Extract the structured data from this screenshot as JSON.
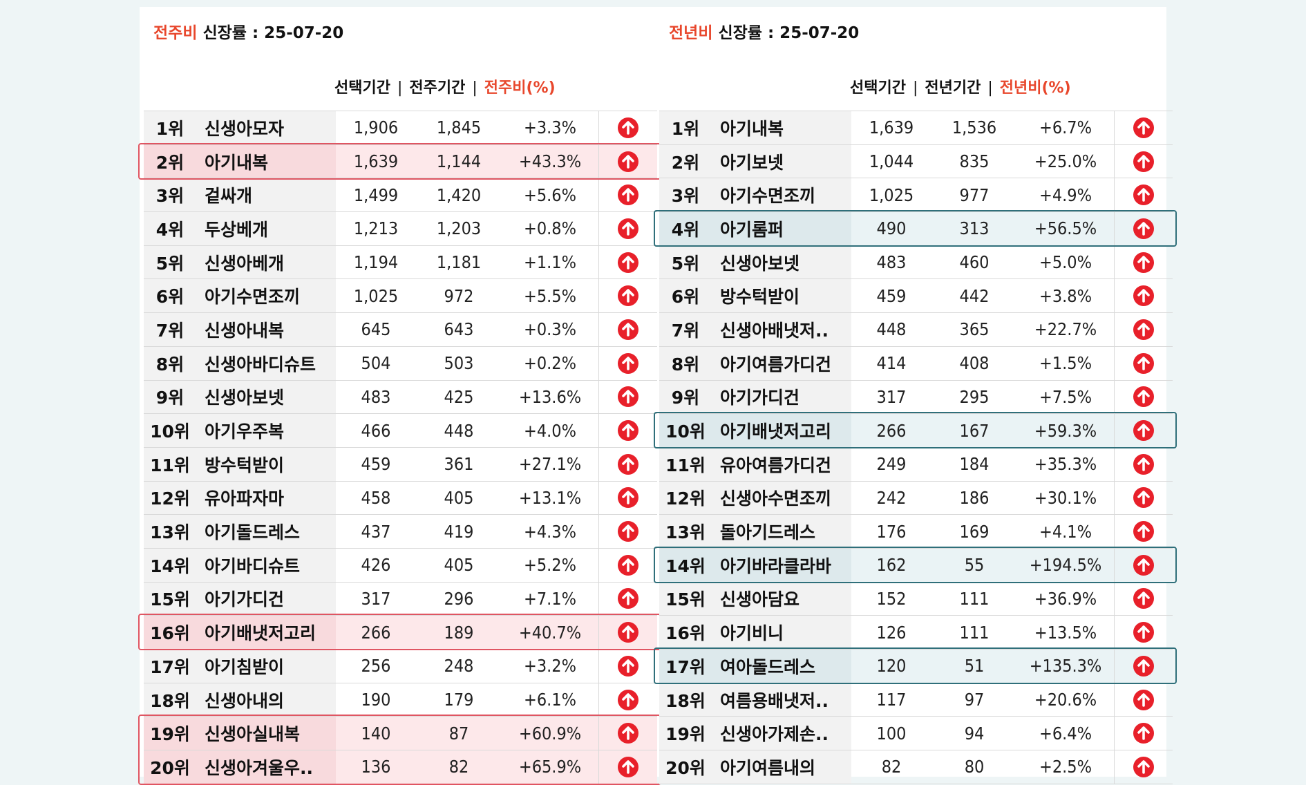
{
  "left": {
    "title_accent": "전주비",
    "title_rest": " 신장률  : 25-07-20",
    "col_headers": [
      "선택기간",
      "|",
      "전주기간",
      "|",
      "전주비(%)"
    ],
    "rows": [
      {
        "rank": "1위",
        "name": "신생아모자",
        "sel": "1,906",
        "prev": "1,845",
        "pct": "+3.3%",
        "hl": ""
      },
      {
        "rank": "2위",
        "name": "아기내복",
        "sel": "1,639",
        "prev": "1,144",
        "pct": "+43.3%",
        "hl": "red"
      },
      {
        "rank": "3위",
        "name": "겉싸개",
        "sel": "1,499",
        "prev": "1,420",
        "pct": "+5.6%",
        "hl": ""
      },
      {
        "rank": "4위",
        "name": "두상베개",
        "sel": "1,213",
        "prev": "1,203",
        "pct": "+0.8%",
        "hl": ""
      },
      {
        "rank": "5위",
        "name": "신생아베개",
        "sel": "1,194",
        "prev": "1,181",
        "pct": "+1.1%",
        "hl": ""
      },
      {
        "rank": "6위",
        "name": "아기수면조끼",
        "sel": "1,025",
        "prev": "972",
        "pct": "+5.5%",
        "hl": ""
      },
      {
        "rank": "7위",
        "name": "신생아내복",
        "sel": "645",
        "prev": "643",
        "pct": "+0.3%",
        "hl": ""
      },
      {
        "rank": "8위",
        "name": "신생아바디슈트",
        "sel": "504",
        "prev": "503",
        "pct": "+0.2%",
        "hl": ""
      },
      {
        "rank": "9위",
        "name": "신생아보넷",
        "sel": "483",
        "prev": "425",
        "pct": "+13.6%",
        "hl": ""
      },
      {
        "rank": "10위",
        "name": "아기우주복",
        "sel": "466",
        "prev": "448",
        "pct": "+4.0%",
        "hl": ""
      },
      {
        "rank": "11위",
        "name": "방수턱받이",
        "sel": "459",
        "prev": "361",
        "pct": "+27.1%",
        "hl": ""
      },
      {
        "rank": "12위",
        "name": "유아파자마",
        "sel": "458",
        "prev": "405",
        "pct": "+13.1%",
        "hl": ""
      },
      {
        "rank": "13위",
        "name": "아기돌드레스",
        "sel": "437",
        "prev": "419",
        "pct": "+4.3%",
        "hl": ""
      },
      {
        "rank": "14위",
        "name": "아기바디슈트",
        "sel": "426",
        "prev": "405",
        "pct": "+5.2%",
        "hl": ""
      },
      {
        "rank": "15위",
        "name": "아기가디건",
        "sel": "317",
        "prev": "296",
        "pct": "+7.1%",
        "hl": ""
      },
      {
        "rank": "16위",
        "name": "아기배냇저고리",
        "sel": "266",
        "prev": "189",
        "pct": "+40.7%",
        "hl": "red"
      },
      {
        "rank": "17위",
        "name": "아기침받이",
        "sel": "256",
        "prev": "248",
        "pct": "+3.2%",
        "hl": ""
      },
      {
        "rank": "18위",
        "name": "신생아내의",
        "sel": "190",
        "prev": "179",
        "pct": "+6.1%",
        "hl": ""
      },
      {
        "rank": "19위",
        "name": "신생아실내복",
        "sel": "140",
        "prev": "87",
        "pct": "+60.9%",
        "hl": "red"
      },
      {
        "rank": "20위",
        "name": "신생아겨울우..",
        "sel": "136",
        "prev": "82",
        "pct": "+65.9%",
        "hl": "red"
      }
    ]
  },
  "right": {
    "title_accent": "전년비",
    "title_rest": " 신장률 : 25-07-20",
    "col_headers": [
      "선택기간",
      "|",
      "전년기간",
      "|",
      "전년비(%)"
    ],
    "rows": [
      {
        "rank": "1위",
        "name": "아기내복",
        "sel": "1,639",
        "prev": "1,536",
        "pct": "+6.7%",
        "hl": ""
      },
      {
        "rank": "2위",
        "name": "아기보넷",
        "sel": "1,044",
        "prev": "835",
        "pct": "+25.0%",
        "hl": ""
      },
      {
        "rank": "3위",
        "name": "아기수면조끼",
        "sel": "1,025",
        "prev": "977",
        "pct": "+4.9%",
        "hl": ""
      },
      {
        "rank": "4위",
        "name": "아기롬퍼",
        "sel": "490",
        "prev": "313",
        "pct": "+56.5%",
        "hl": "teal"
      },
      {
        "rank": "5위",
        "name": "신생아보넷",
        "sel": "483",
        "prev": "460",
        "pct": "+5.0%",
        "hl": ""
      },
      {
        "rank": "6위",
        "name": "방수턱받이",
        "sel": "459",
        "prev": "442",
        "pct": "+3.8%",
        "hl": ""
      },
      {
        "rank": "7위",
        "name": "신생아배냇저..",
        "sel": "448",
        "prev": "365",
        "pct": "+22.7%",
        "hl": ""
      },
      {
        "rank": "8위",
        "name": "아기여름가디건",
        "sel": "414",
        "prev": "408",
        "pct": "+1.5%",
        "hl": ""
      },
      {
        "rank": "9위",
        "name": "아기가디건",
        "sel": "317",
        "prev": "295",
        "pct": "+7.5%",
        "hl": ""
      },
      {
        "rank": "10위",
        "name": "아기배냇저고리",
        "sel": "266",
        "prev": "167",
        "pct": "+59.3%",
        "hl": "teal"
      },
      {
        "rank": "11위",
        "name": "유아여름가디건",
        "sel": "249",
        "prev": "184",
        "pct": "+35.3%",
        "hl": ""
      },
      {
        "rank": "12위",
        "name": "신생아수면조끼",
        "sel": "242",
        "prev": "186",
        "pct": "+30.1%",
        "hl": ""
      },
      {
        "rank": "13위",
        "name": "돌아기드레스",
        "sel": "176",
        "prev": "169",
        "pct": "+4.1%",
        "hl": ""
      },
      {
        "rank": "14위",
        "name": "아기바라클라바",
        "sel": "162",
        "prev": "55",
        "pct": "+194.5%",
        "hl": "teal"
      },
      {
        "rank": "15위",
        "name": "신생아담요",
        "sel": "152",
        "prev": "111",
        "pct": "+36.9%",
        "hl": ""
      },
      {
        "rank": "16위",
        "name": "아기비니",
        "sel": "126",
        "prev": "111",
        "pct": "+13.5%",
        "hl": ""
      },
      {
        "rank": "17위",
        "name": "여아돌드레스",
        "sel": "120",
        "prev": "51",
        "pct": "+135.3%",
        "hl": "teal"
      },
      {
        "rank": "18위",
        "name": "여름용배냇저..",
        "sel": "117",
        "prev": "97",
        "pct": "+20.6%",
        "hl": ""
      },
      {
        "rank": "19위",
        "name": "신생아가제손..",
        "sel": "100",
        "prev": "94",
        "pct": "+6.4%",
        "hl": ""
      },
      {
        "rank": "20위",
        "name": "아기여름내의",
        "sel": "82",
        "prev": "80",
        "pct": "+2.5%",
        "hl": ""
      }
    ]
  },
  "icon": "arrow-up-circle-icon",
  "colors": {
    "accent": "#e8472c",
    "up_icon": "#e8202a",
    "highlight_red": "#e05562",
    "highlight_teal": "#2f6f7a"
  }
}
